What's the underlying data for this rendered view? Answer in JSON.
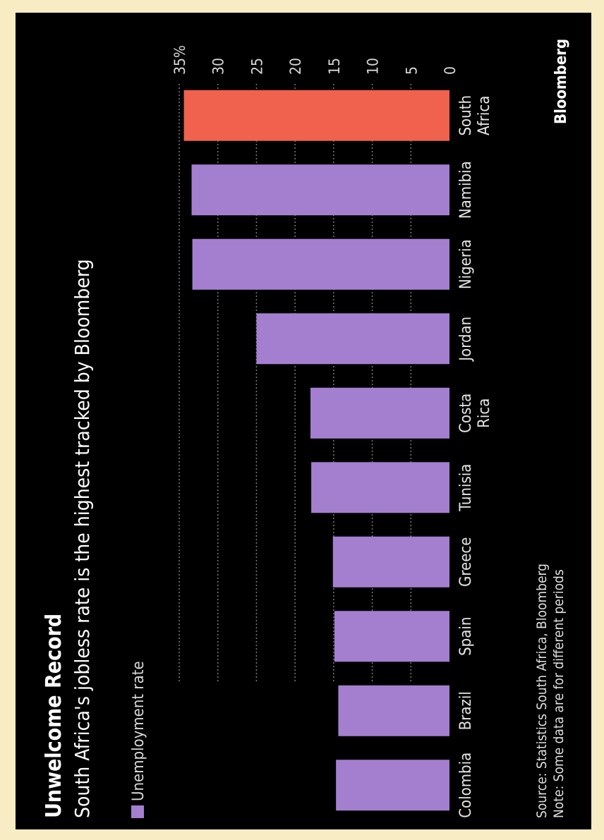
{
  "colors": {
    "background": "#000000",
    "frame": "#f7ecc4",
    "bar": "#a47fd0",
    "highlight": "#f0624d",
    "grid": "#7a7a7a",
    "text": "#ffffff"
  },
  "chart_data": {
    "type": "bar",
    "title": "Unwelcome Record",
    "subtitle": "South Africa's jobless rate is the highest tracked by Bloomberg",
    "legend": {
      "label": "Unemployment rate",
      "placement": "top-left"
    },
    "categories": [
      "Colombia",
      "Brazil",
      "Spain",
      "Greece",
      "Tunisia",
      "Costa Rica",
      "Jordan",
      "Nigeria",
      "Namibia",
      "South Africa"
    ],
    "category_lines": [
      [
        "Colombia"
      ],
      [
        "Brazil"
      ],
      [
        "Spain"
      ],
      [
        "Greece"
      ],
      [
        "Tunisia"
      ],
      [
        "Costa",
        "Rica"
      ],
      [
        "Jordan"
      ],
      [
        "Nigeria"
      ],
      [
        "Namibia"
      ],
      [
        "South",
        "Africa"
      ]
    ],
    "values": [
      14.7,
      14.4,
      14.9,
      15.1,
      17.9,
      18.0,
      25.0,
      33.3,
      33.4,
      34.4
    ],
    "highlight": "South Africa",
    "ylim": [
      0,
      35
    ],
    "yticks": [
      0,
      5,
      10,
      15,
      20,
      25,
      30,
      35
    ],
    "ytick_labels": [
      "0",
      "5",
      "10",
      "15",
      "20",
      "25",
      "30",
      "35%"
    ],
    "grid": true,
    "xlabel": "",
    "ylabel": ""
  },
  "footer": {
    "source": "Source: Statistics South Africa, Bloomberg",
    "note": "Note: Some data are for different periods",
    "brand": "Bloomberg"
  }
}
